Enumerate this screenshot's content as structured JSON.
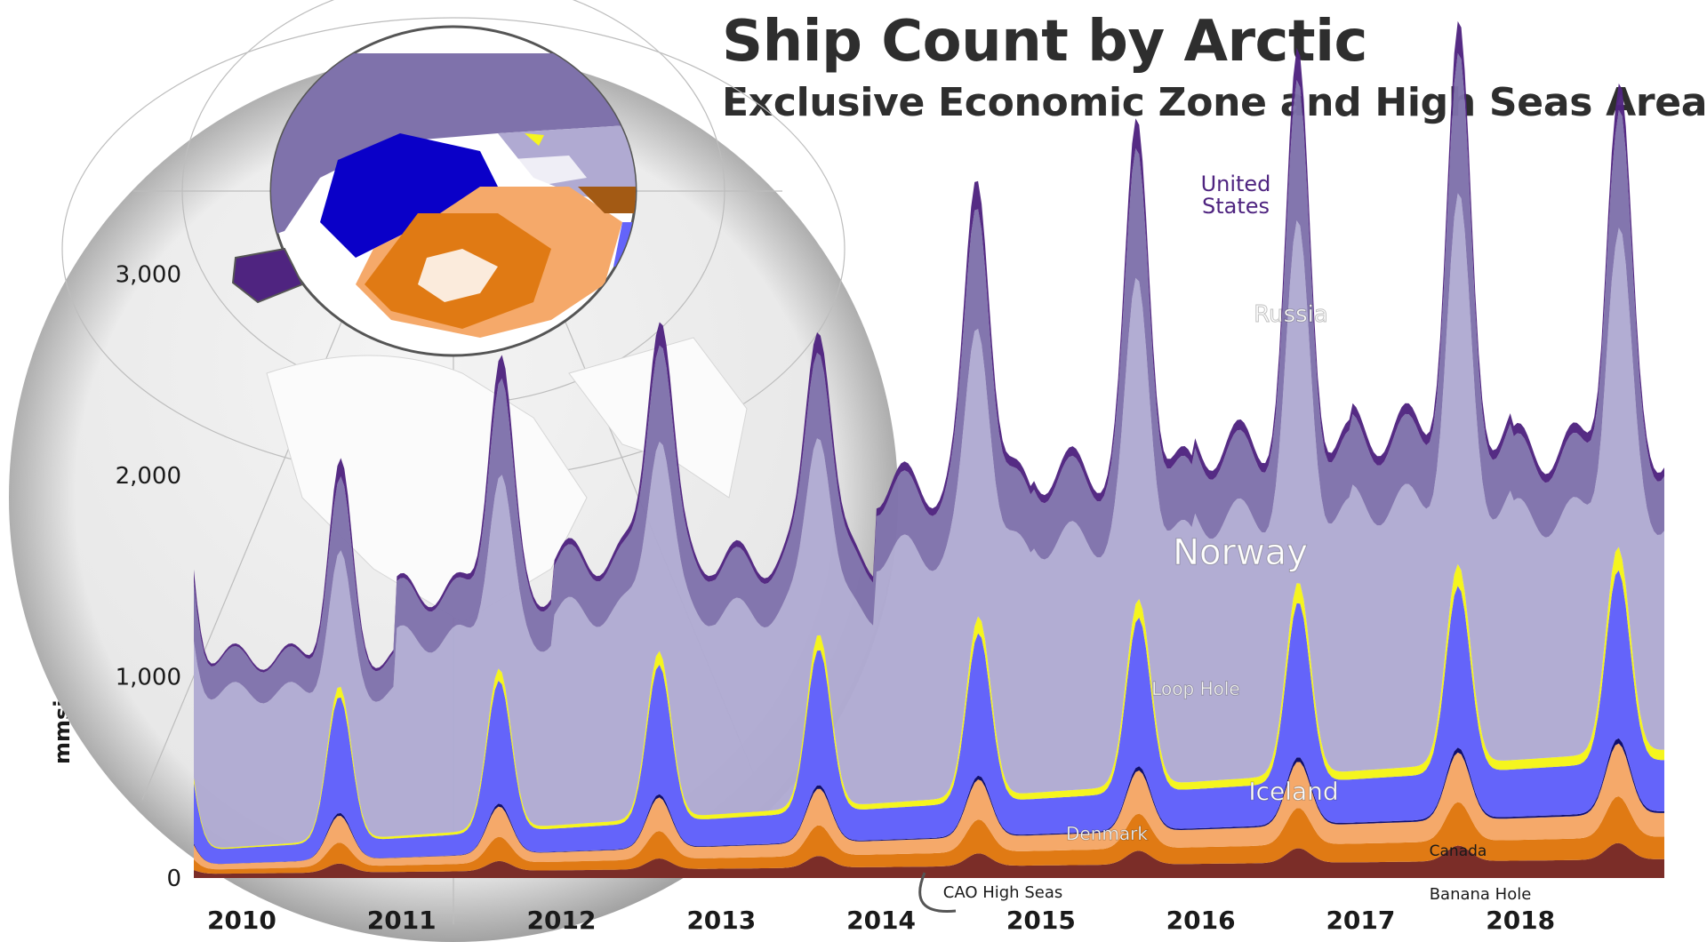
{
  "title": "Ship Count by Arctic",
  "subtitle": "Exclusive Economic Zone and High Seas Areas",
  "chart_data": {
    "type": "area",
    "stacked": true,
    "ylabel": "mmsi count",
    "xlabel": "",
    "ylim": [
      0,
      3700
    ],
    "x_domain": [
      "2009-09",
      "2018-12"
    ],
    "yticks": [
      {
        "value": 0,
        "label": "0"
      },
      {
        "value": 1000,
        "label": "1,000"
      },
      {
        "value": 2000,
        "label": "2,000"
      },
      {
        "value": 3000,
        "label": "3,000"
      }
    ],
    "xticks": [
      {
        "value": 2010,
        "label": "2010"
      },
      {
        "value": 2011,
        "label": "2011"
      },
      {
        "value": 2012,
        "label": "2012"
      },
      {
        "value": 2013,
        "label": "2013"
      },
      {
        "value": 2014,
        "label": "2014"
      },
      {
        "value": 2015,
        "label": "2015"
      },
      {
        "value": 2016,
        "label": "2016"
      },
      {
        "value": 2017,
        "label": "2017"
      },
      {
        "value": 2018,
        "label": "2018"
      }
    ],
    "series_order_bottom_to_top": [
      "Banana Hole",
      "Canada",
      "Denmark",
      "CAO High Seas",
      "Iceland",
      "Loop Hole",
      "Norway",
      "Russia",
      "United States"
    ],
    "series": [
      {
        "name": "Banana Hole",
        "color": "#7b2d28",
        "winter": 20,
        "summer": 60,
        "start": 30,
        "growth": 8
      },
      {
        "name": "Canada",
        "color": "#e07a14",
        "winter": 20,
        "summer": 90,
        "start": 30,
        "growth": 10
      },
      {
        "name": "Denmark",
        "color": "#f5a96a",
        "winter": 25,
        "summer": 120,
        "start": 40,
        "growth": 10
      },
      {
        "name": "CAO High Seas",
        "color": "#100f6e",
        "winter": 0,
        "summer": 12,
        "start": 0,
        "growth": 1
      },
      {
        "name": "Iceland",
        "color": "#6464fa",
        "winter": 70,
        "summer": 550,
        "start": 120,
        "growth": 20
      },
      {
        "name": "Loop Hole",
        "color": "#f5f51e",
        "winter": 5,
        "summer": 45,
        "start": 5,
        "growth": 5
      },
      {
        "name": "Norway",
        "color": "#b0aad2",
        "winter": 700,
        "summer": 900,
        "start": 700,
        "growth": 150
      },
      {
        "name": "Russia",
        "color": "#7f72ab",
        "winter": 150,
        "summer": 550,
        "start": 250,
        "growth": 40
      },
      {
        "name": "United States",
        "color": "#4f2480",
        "winter": 10,
        "summer": 140,
        "start": 60,
        "growth": 8
      }
    ],
    "totals_annual_peak": {
      "2010": 2000,
      "2011": 2600,
      "2012": 2900,
      "2013": 2880,
      "2014": 3550,
      "2015": 3680,
      "2016": 3910,
      "2017": 4050,
      "2018": 3880
    },
    "labels": [
      {
        "series": "United States",
        "text": "United\nStates",
        "color": "#4f2480"
      },
      {
        "series": "Russia",
        "text": "Russia",
        "color": "#ffffff"
      },
      {
        "series": "Norway",
        "text": "Norway",
        "color": "#ffffff"
      },
      {
        "series": "Loop Hole",
        "text": "Loop Hole",
        "color": "#ffffff"
      },
      {
        "series": "Iceland",
        "text": "Iceland",
        "color": "#ffffff"
      },
      {
        "series": "Denmark",
        "text": "Denmark",
        "color": "#ffffff"
      },
      {
        "series": "Canada",
        "text": "Canada",
        "color": "#1a1a1a"
      },
      {
        "series": "Banana Hole",
        "text": "Banana Hole",
        "color": "#1a1a1a"
      },
      {
        "series": "CAO High Seas",
        "text": "CAO High Seas",
        "color": "#1a1a1a"
      }
    ],
    "grid": false,
    "legend": "inline labels",
    "inset": "Arctic map showing EEZ and high seas areas colored by zone"
  }
}
